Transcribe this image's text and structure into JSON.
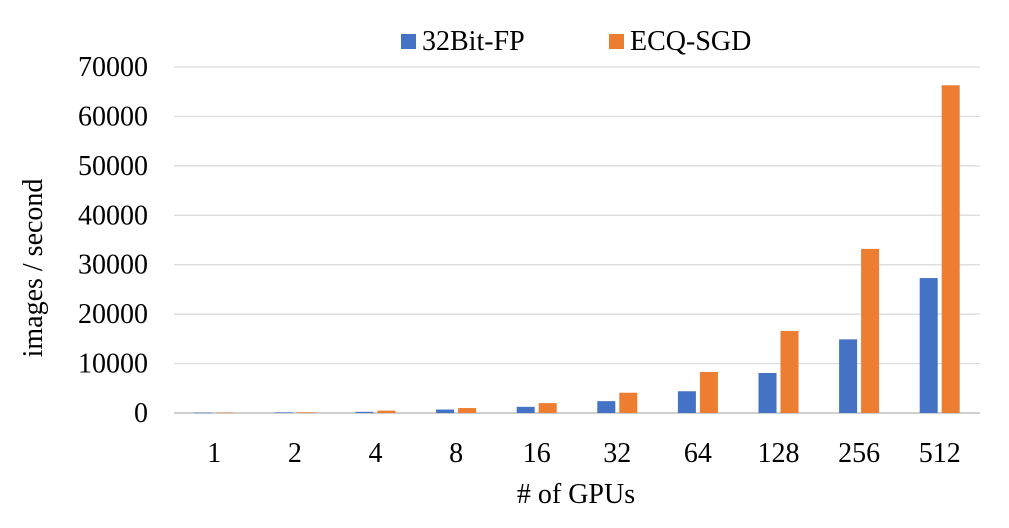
{
  "chart_data": {
    "type": "bar",
    "title": "",
    "xlabel": "# of GPUs",
    "ylabel": "images / second",
    "categories": [
      "1",
      "2",
      "4",
      "8",
      "16",
      "32",
      "64",
      "128",
      "256",
      "512"
    ],
    "series": [
      {
        "name": "32Bit-FP",
        "color": "#4472C4",
        "values": [
          60,
          115,
          235,
          700,
          1250,
          2400,
          4400,
          8100,
          14900,
          27300
        ]
      },
      {
        "name": "ECQ-SGD",
        "color": "#ED7D31",
        "values": [
          70,
          135,
          480,
          1000,
          2000,
          4100,
          8300,
          16600,
          33200,
          66300
        ]
      }
    ],
    "ylim": [
      0,
      70000
    ],
    "yticks": [
      0,
      10000,
      20000,
      30000,
      40000,
      50000,
      60000,
      70000
    ],
    "grid": true,
    "legend": "top-center"
  }
}
